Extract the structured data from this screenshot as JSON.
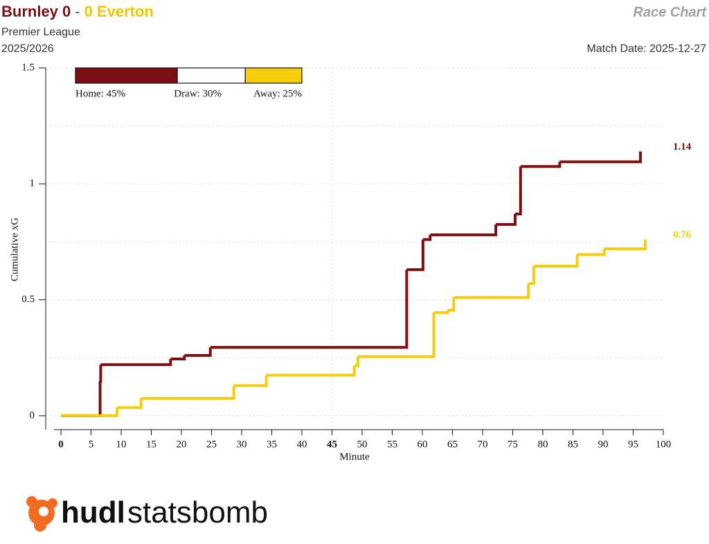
{
  "chart_data": {
    "type": "line",
    "step": true,
    "title_home": "Burnley 0",
    "title_separator": "-",
    "title_away": "0 Everton",
    "chart_label": "Race Chart",
    "competition": "Premier League",
    "season": "2025/2026",
    "match_date": "Match Date: 2025-12-27",
    "probabilities": [
      {
        "label": "Home: 45%",
        "value": 45,
        "color": "#7d0f12"
      },
      {
        "label": "Draw: 30%",
        "value": 30,
        "color": "#ffffff"
      },
      {
        "label": "Away: 25%",
        "value": 25,
        "color": "#f5cd0c"
      }
    ],
    "xlabel": "Minute",
    "ylabel": "Cumulative xG",
    "xlim": [
      0,
      100
    ],
    "xticks": [
      0,
      5,
      10,
      15,
      20,
      25,
      30,
      35,
      40,
      45,
      50,
      55,
      60,
      65,
      70,
      75,
      80,
      85,
      90,
      95,
      100
    ],
    "bold_xticks": [
      0,
      45
    ],
    "xgrid": [
      45
    ],
    "ylim": [
      -0.06,
      1.5
    ],
    "yticks": [
      0,
      0.5,
      1,
      1.5
    ],
    "minor_yticks": [
      0.25,
      0.75,
      1.25
    ],
    "grid": true,
    "series": [
      {
        "color": "#7d0f12",
        "x": [
          0,
          6.5,
          6.6,
          18.2,
          20.5,
          24.8,
          57.4,
          60.1,
          61.3,
          72.2,
          75.4,
          76.3,
          82.8,
          96.2
        ],
        "values": [
          0,
          0.15,
          0.22,
          0.245,
          0.26,
          0.295,
          0.63,
          0.76,
          0.78,
          0.825,
          0.87,
          1.075,
          1.095,
          1.14
        ]
      },
      {
        "color": "#f5cd0c",
        "x": [
          0,
          9.3,
          13.3,
          28.7,
          34.1,
          48.7,
          49.3,
          61.9,
          64.2,
          65.2,
          77.6,
          78.5,
          85.7,
          90.2,
          97
        ],
        "values": [
          0,
          0.035,
          0.075,
          0.13,
          0.175,
          0.215,
          0.255,
          0.445,
          0.455,
          0.51,
          0.57,
          0.645,
          0.695,
          0.72,
          0.76
        ]
      }
    ],
    "logo": {
      "left": "hudl",
      "right": "statsbomb"
    }
  }
}
